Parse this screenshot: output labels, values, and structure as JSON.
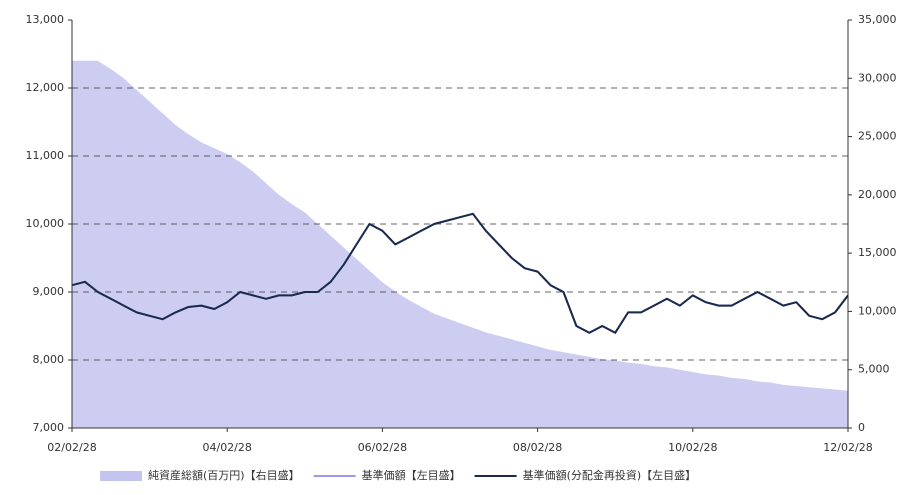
{
  "chart_data": {
    "type": "line",
    "x": [
      0,
      2,
      4,
      6,
      8,
      10,
      12,
      14,
      16,
      18,
      20,
      22,
      24,
      26,
      28,
      30,
      32,
      34,
      36,
      38,
      40,
      42,
      44,
      46,
      48,
      50,
      52,
      54,
      56,
      58,
      60,
      62,
      64,
      66,
      68,
      70,
      72,
      74,
      76,
      78,
      80,
      82,
      84,
      86,
      88,
      90,
      92,
      94,
      96,
      98,
      100,
      102,
      104,
      106,
      108,
      110,
      112,
      114,
      116,
      118,
      120
    ],
    "xlim": [
      0,
      120
    ],
    "xticks": [
      {
        "value": 0,
        "label": "02/02/28"
      },
      {
        "value": 24,
        "label": "04/02/28"
      },
      {
        "value": 48,
        "label": "06/02/28"
      },
      {
        "value": 72,
        "label": "08/02/28"
      },
      {
        "value": 96,
        "label": "10/02/28"
      },
      {
        "value": 120,
        "label": "12/02/28"
      }
    ],
    "ylim": [
      7000,
      13000
    ],
    "yticks": [
      {
        "value": 7000,
        "label": "7,000"
      },
      {
        "value": 8000,
        "label": "8,000"
      },
      {
        "value": 9000,
        "label": "9,000"
      },
      {
        "value": 10000,
        "label": "10,000"
      },
      {
        "value": 11000,
        "label": "11,000"
      },
      {
        "value": 12000,
        "label": "12,000"
      },
      {
        "value": 13000,
        "label": "13,000"
      }
    ],
    "y2lim": [
      0,
      35000
    ],
    "y2ticks": [
      0,
      {
        "value": 5000,
        "label": "5,000"
      },
      {
        "value": 10000,
        "label": "10,000"
      },
      {
        "value": 15000,
        "label": "15,000"
      },
      {
        "value": 20000,
        "label": "20,000"
      },
      {
        "value": 25000,
        "label": "25,000"
      },
      {
        "value": 30000,
        "label": "30,000"
      },
      {
        "value": 35000,
        "label": "35,000"
      }
    ],
    "grid": true,
    "legend": "bottom",
    "series": [
      {
        "name": "純資産総額(百万円)【右目盛】",
        "type": "area",
        "axis": "y2",
        "color": "#c4c4f0",
        "values": [
          31500,
          31500,
          31500,
          30800,
          30000,
          29000,
          28000,
          27000,
          26000,
          25200,
          24500,
          24000,
          23500,
          22800,
          22000,
          21000,
          20000,
          19200,
          18500,
          17500,
          16500,
          15500,
          14500,
          13500,
          12500,
          11700,
          11000,
          10400,
          9800,
          9400,
          9000,
          8600,
          8200,
          7900,
          7600,
          7300,
          7000,
          6700,
          6500,
          6300,
          6100,
          5900,
          5800,
          5600,
          5500,
          5300,
          5200,
          5000,
          4800,
          4600,
          4500,
          4300,
          4200,
          4000,
          3900,
          3700,
          3600,
          3500,
          3400,
          3300,
          3200
        ]
      },
      {
        "name": "基準価額【左目盛】",
        "type": "line",
        "color": "#9999ee",
        "values": [
          9100,
          9150,
          9000,
          8900,
          8800,
          8700,
          8650,
          8600,
          8700,
          8780,
          8800,
          8750,
          8850,
          9000,
          8950,
          8900,
          8950,
          8950,
          9000,
          9000,
          9150,
          9400,
          9700,
          10000,
          9900,
          9700,
          9800,
          9900,
          10000,
          10050,
          10100,
          10150,
          9900,
          9700,
          9500,
          9350,
          9300,
          9100,
          9000,
          8500,
          8400,
          8500,
          8400,
          8700,
          8700,
          8800,
          8900,
          8800,
          8950,
          8850,
          8800,
          8800,
          8900,
          9000,
          8900,
          8800,
          8850,
          8650,
          8600,
          8700,
          8950
        ]
      },
      {
        "name": "基準価額(分配金再投資)【左目盛】",
        "type": "line",
        "color": "#1a2a4a",
        "values": [
          9100,
          9150,
          9000,
          8900,
          8800,
          8700,
          8650,
          8600,
          8700,
          8780,
          8800,
          8750,
          8850,
          9000,
          8950,
          8900,
          8950,
          8950,
          9000,
          9000,
          9150,
          9400,
          9700,
          10000,
          9900,
          9700,
          9800,
          9900,
          10000,
          10050,
          10100,
          10150,
          9900,
          9700,
          9500,
          9350,
          9300,
          9100,
          9000,
          8500,
          8400,
          8500,
          8400,
          8700,
          8700,
          8800,
          8900,
          8800,
          8950,
          8850,
          8800,
          8800,
          8900,
          9000,
          8900,
          8800,
          8850,
          8650,
          8600,
          8700,
          8950
        ]
      }
    ]
  }
}
